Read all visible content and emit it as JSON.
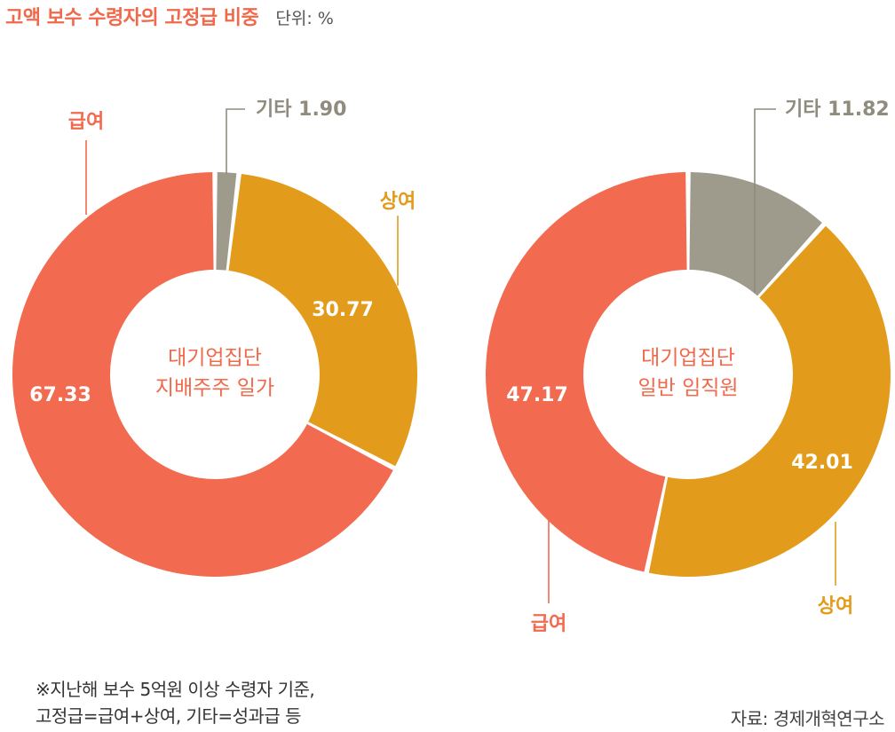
{
  "header": {
    "title": "고액 보수 수령자의 고정급 비중",
    "unit": "단위: %"
  },
  "chart_data": [
    {
      "type": "pie",
      "donut": true,
      "center_label": [
        "대기업집단",
        "지배주주 일가"
      ],
      "slices": [
        {
          "label": "기타",
          "value": 1.9,
          "value_text": "1.90",
          "color": "#9e9b8c",
          "external_value": true
        },
        {
          "label": "상여",
          "value": 30.77,
          "value_text": "30.77",
          "color": "#e39b1c",
          "external_value": false
        },
        {
          "label": "급여",
          "value": 67.33,
          "value_text": "67.33",
          "color": "#f26a4f",
          "external_value": false
        }
      ]
    },
    {
      "type": "pie",
      "donut": true,
      "center_label": [
        "대기업집단",
        "일반 임직원"
      ],
      "slices": [
        {
          "label": "기타",
          "value": 11.82,
          "value_text": "11.82",
          "color": "#9e9b8c",
          "external_value": true
        },
        {
          "label": "상여",
          "value": 42.01,
          "value_text": "42.01",
          "color": "#e39b1c",
          "external_value": false
        },
        {
          "label": "급여",
          "value": 47.17,
          "value_text": "47.17",
          "color": "#f26a4f",
          "external_value": false
        }
      ]
    }
  ],
  "footnote": {
    "line1": "※지난해 보수 5억원 이상 수령자 기준,",
    "line2": "고정급=급여+상여, 기타=성과급 등"
  },
  "source": "자료: 경제개혁연구소"
}
